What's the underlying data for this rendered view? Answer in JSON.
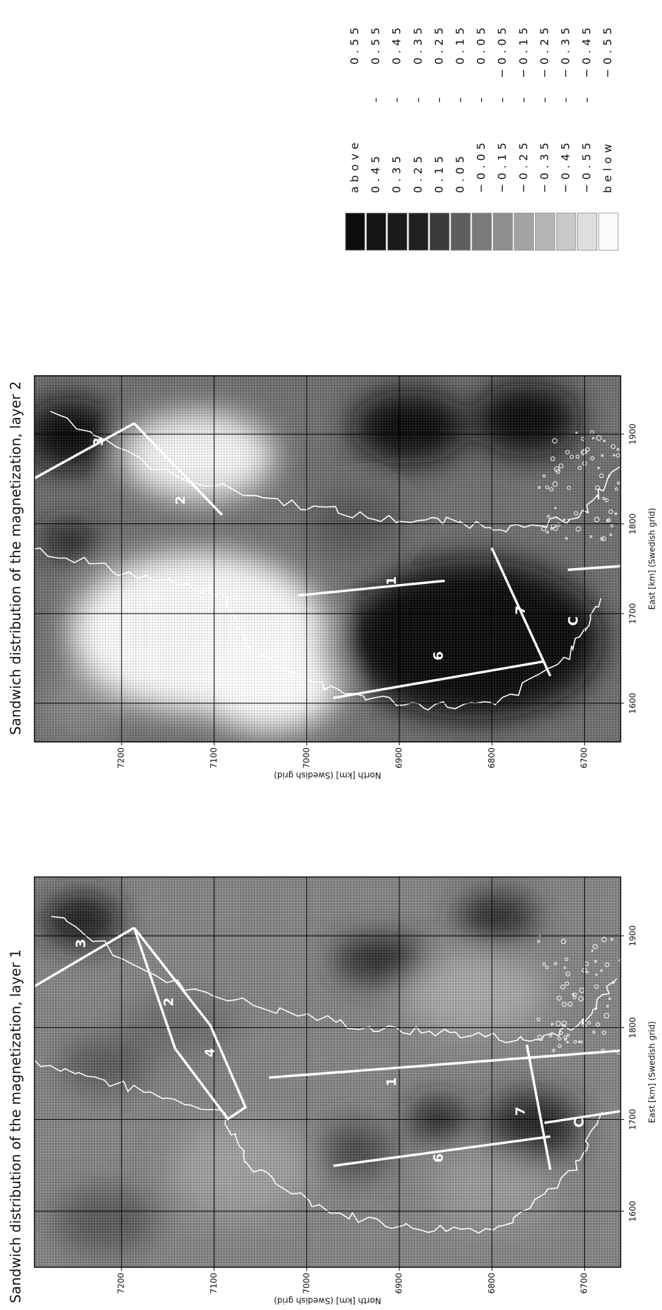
{
  "figure": {
    "panels": [
      {
        "title": "Sandwich distribution of the magnetization, layer 1",
        "x_label": "East [km] (Swedish grid)",
        "y_label": "North [km] (Swedish grid)",
        "xlim": [
          1539,
          1964
        ],
        "ylim": [
          6661,
          7294
        ],
        "xticks": [
          1600,
          1700,
          1800,
          1900
        ],
        "yticks": [
          7200,
          7100,
          7000,
          6900,
          6800,
          6700
        ],
        "profiles": [
          "1",
          "2",
          "3",
          "4",
          "6",
          "7",
          "C"
        ]
      },
      {
        "title": "Sandwich distribution of the magnetization, layer 2",
        "x_label": "East [km] (Swedish grid)",
        "y_label": "North [km] (Swedish grid)",
        "xlim": [
          1557,
          1965
        ],
        "ylim": [
          6661,
          7294
        ],
        "xticks": [
          1600,
          1700,
          1800,
          1900
        ],
        "yticks": [
          7200,
          7100,
          7000,
          6900,
          6800,
          6700
        ],
        "profiles": [
          "1",
          "2",
          "3",
          "6",
          "7",
          "C"
        ]
      }
    ],
    "legend": {
      "separator": "–",
      "rows": [
        {
          "label": "above",
          "value": "0.55"
        },
        {
          "low": "0.45",
          "high": "0.55"
        },
        {
          "low": "0.35",
          "high": "0.45"
        },
        {
          "low": "0.25",
          "high": "0.35"
        },
        {
          "low": "0.15",
          "high": "0.25"
        },
        {
          "low": "0.05",
          "high": "0.15"
        },
        {
          "low": "−0.05",
          "high": "0.05"
        },
        {
          "low": "−0.15",
          "high": "−0.05"
        },
        {
          "low": "−0.25",
          "high": "−0.15"
        },
        {
          "low": "−0.35",
          "high": "−0.25"
        },
        {
          "low": "−0.45",
          "high": "−0.35"
        },
        {
          "low": "−0.55",
          "high": "−0.45"
        },
        {
          "label": "below",
          "value": "−0.55"
        }
      ]
    }
  }
}
